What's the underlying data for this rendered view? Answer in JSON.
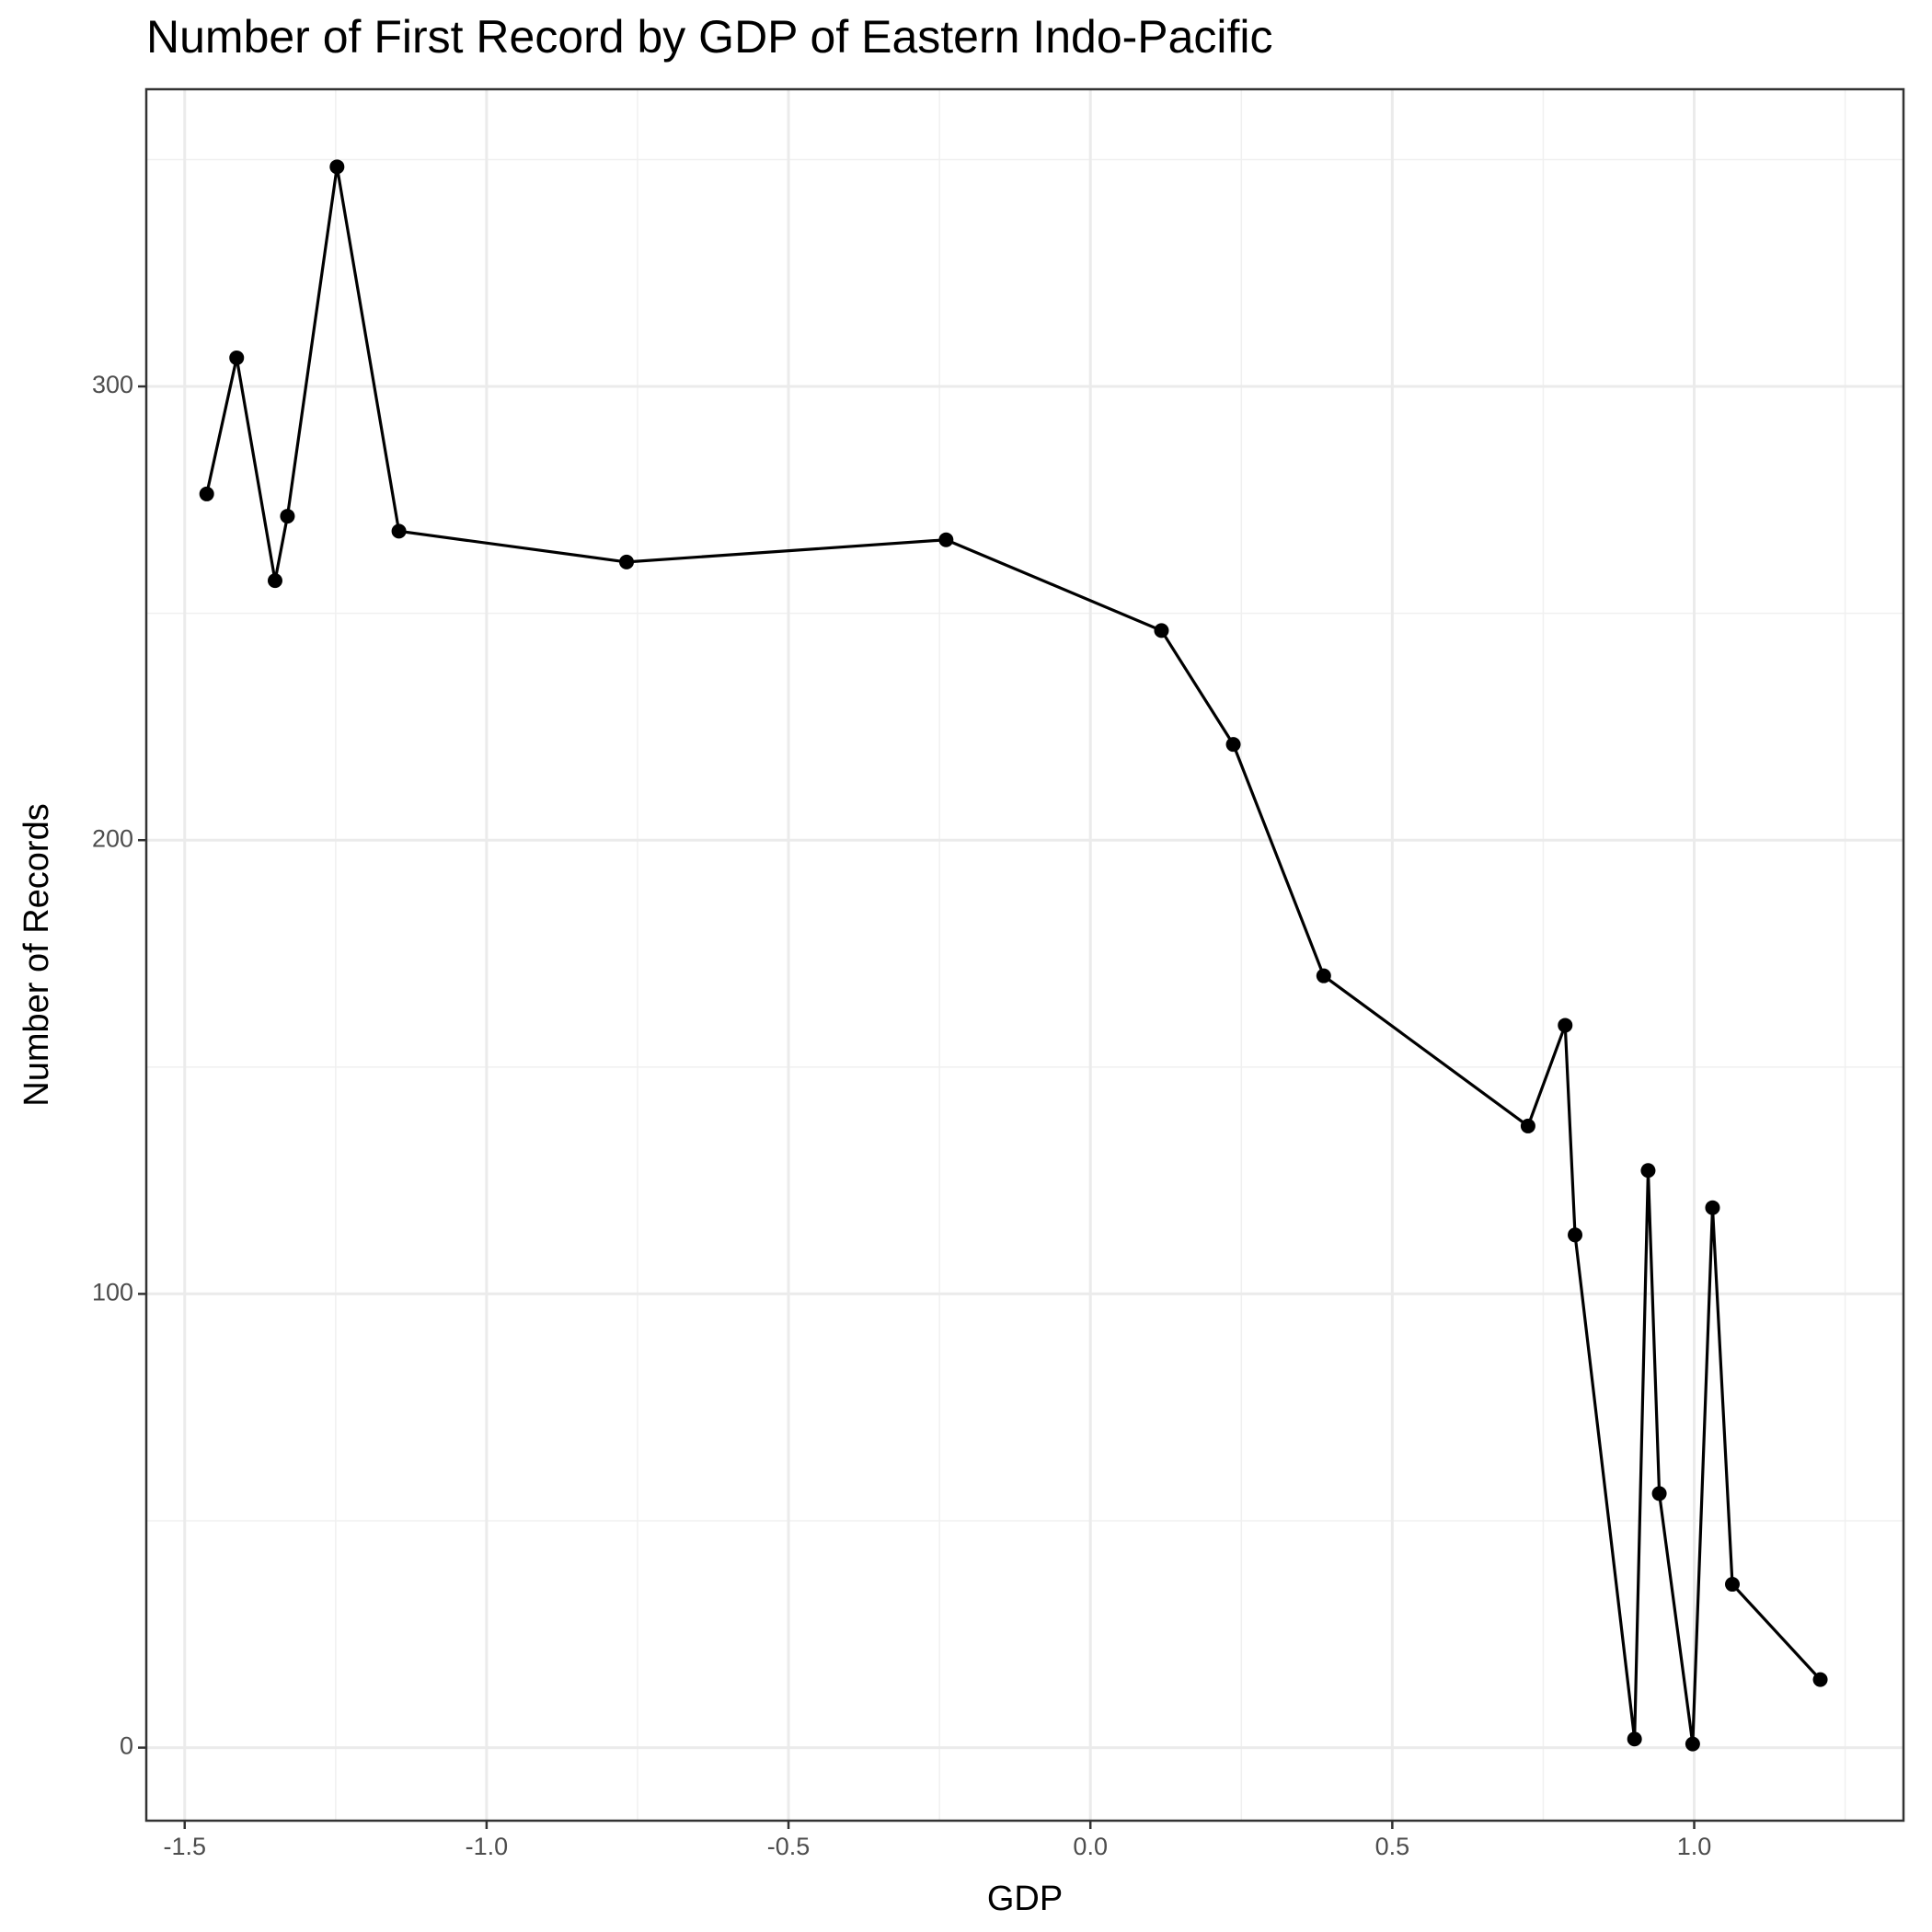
{
  "chart_data": {
    "type": "line",
    "title": "Number of First Record by GDP of Eastern Indo-Pacific",
    "x_label": "GDP",
    "y_label": "Number of Records",
    "x": [
      -1.4635,
      -1.4139,
      -1.3503,
      -1.3298,
      -1.2477,
      -1.1452,
      -0.7682,
      -0.239,
      0.1177,
      0.2367,
      0.3864,
      0.7248,
      0.7863,
      0.8027,
      0.9012,
      0.9237,
      0.9422,
      0.9975,
      1.0304,
      1.0632,
      1.2088
    ],
    "series": [
      {
        "name": "Number of Records",
        "color": "#000000",
        "values": [
          276.3,
          306.3,
          257.2,
          271.4,
          348.4,
          268.1,
          261.3,
          266.2,
          246.2,
          221.1,
          170.1,
          137.0,
          159.2,
          113.0,
          1.9,
          127.2,
          56.0,
          0.8,
          119.0,
          36.0,
          15.0
        ]
      }
    ],
    "xlim": [
      -1.5636,
      1.3466
    ],
    "ylim": [
      -16.1,
      365.5
    ],
    "xticks": [
      -1.5,
      {
        "value": -1.0,
        "label": "-1.0"
      },
      -0.5,
      {
        "value": 0.0,
        "label": "0.0"
      },
      0.5,
      {
        "value": 1.0,
        "label": "1.0"
      }
    ],
    "yticks": [
      0,
      100,
      200,
      300
    ],
    "grid": true
  }
}
